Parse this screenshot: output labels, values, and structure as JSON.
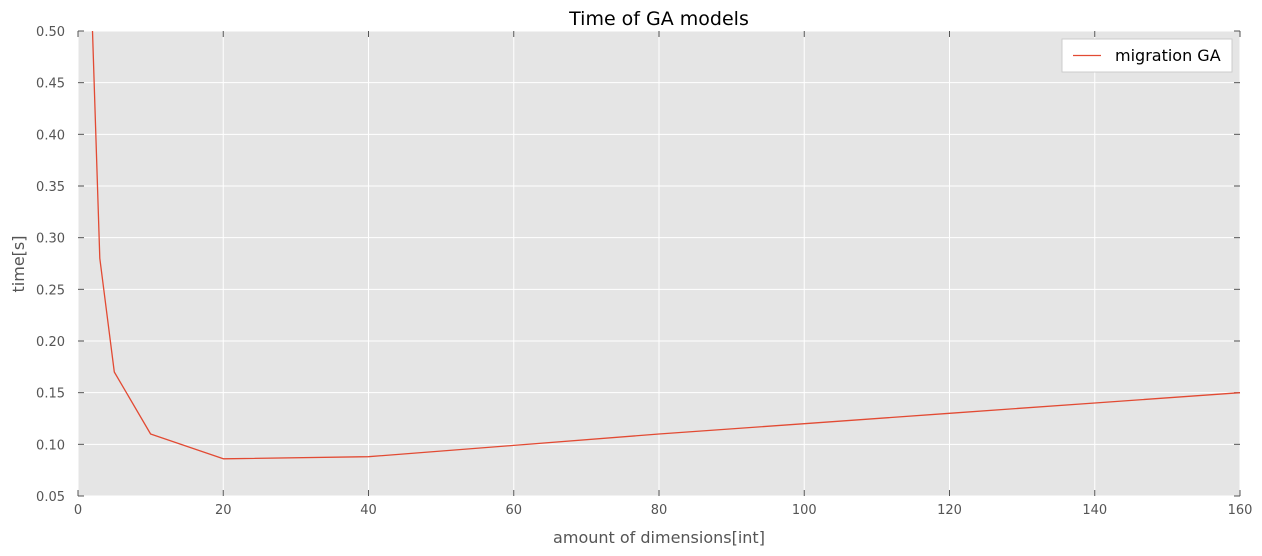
{
  "chart_data": {
    "type": "line",
    "title": "Time of GA models",
    "xlabel": "amount of dimensions[int]",
    "ylabel": "time[s]",
    "xlim": [
      0,
      160
    ],
    "ylim": [
      0.05,
      0.5
    ],
    "xticks": [
      "0",
      "20",
      "40",
      "60",
      "80",
      "100",
      "120",
      "140",
      "160"
    ],
    "yticks": [
      "0.05",
      "0.10",
      "0.15",
      "0.20",
      "0.25",
      "0.30",
      "0.35",
      "0.40",
      "0.45",
      "0.50"
    ],
    "grid": true,
    "legend_position": "top-right",
    "series": [
      {
        "name": "migration GA",
        "color": "#e24a33",
        "x": [
          2,
          3,
          5,
          10,
          20,
          40,
          60,
          80,
          100,
          120,
          140,
          160
        ],
        "y": [
          0.5,
          0.28,
          0.17,
          0.11,
          0.086,
          0.088,
          0.099,
          0.11,
          0.12,
          0.13,
          0.14,
          0.15
        ]
      }
    ]
  },
  "colors": {
    "plot_background": "#e5e5e5",
    "grid": "#ffffff",
    "axis_text": "#555555"
  }
}
